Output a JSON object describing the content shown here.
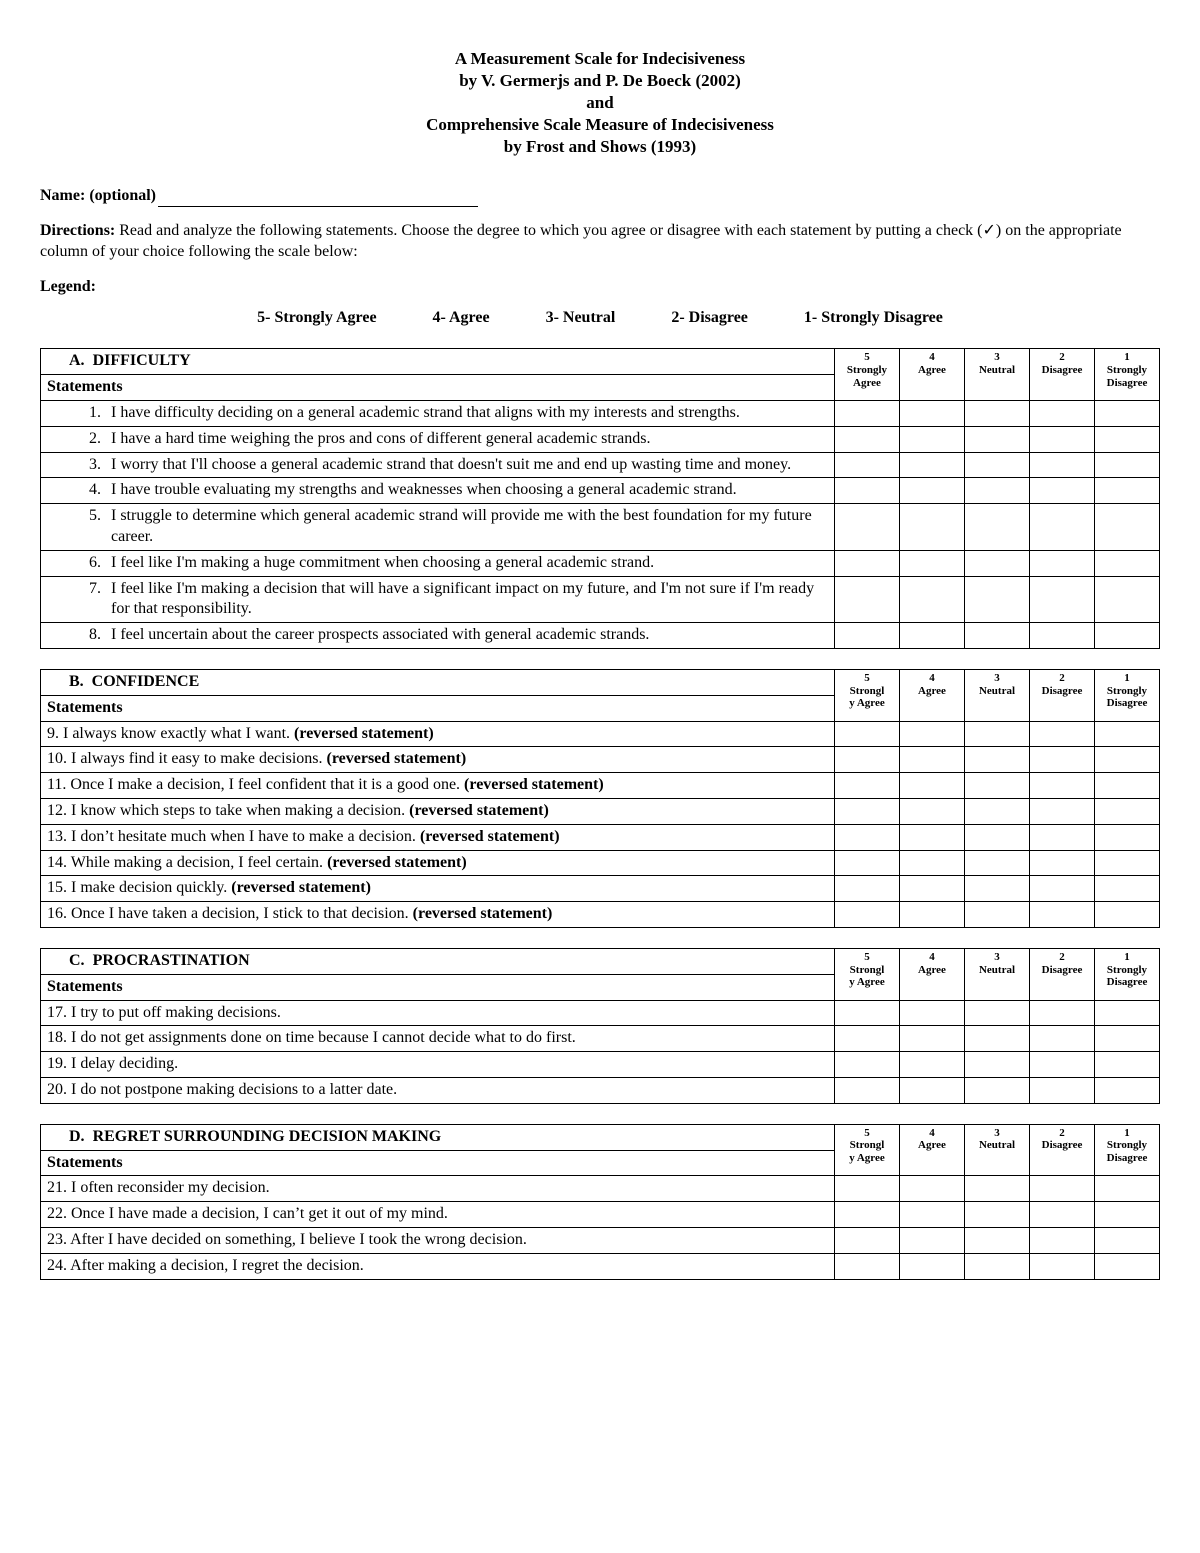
{
  "title": {
    "line1": "A Measurement Scale for Indecisiveness",
    "line2": "by V. Germerjs and P. De Boeck (2002)",
    "line3": "and",
    "line4": "Comprehensive Scale Measure of Indecisiveness",
    "line5": "by Frost and Shows (1993)"
  },
  "name_label": "Name: (optional)",
  "directions_label": "Directions:",
  "directions_text": " Read and analyze the following statements. Choose the degree to which you agree or disagree with each statement by putting a check (✓) on the appropriate column of your choice following the scale below:",
  "legend_label": "Legend:",
  "legend": {
    "i5": "5- Strongly Agree",
    "i4": "4- Agree",
    "i3": "3- Neutral",
    "i2": "2- Disagree",
    "i1": "1- Strongly Disagree"
  },
  "ratings": {
    "c5n": "5",
    "c5l": "Strongly Agree",
    "c4n": "4",
    "c4l": "Agree",
    "c3n": "3",
    "c3l": "Neutral",
    "c2n": "2",
    "c2l": "Disagree",
    "c1n": "1",
    "c1l": "Strongly Disagree",
    "c5l2": "Strongl\ny Agree"
  },
  "statements_label": "Statements",
  "sections": {
    "A": {
      "letter": "A.",
      "title": "DIFFICULTY",
      "items": [
        "I have difficulty deciding on a general academic strand that aligns with my interests and strengths.",
        "I have a hard time weighing the pros and cons of different general academic strands.",
        "I worry that I'll choose a general academic strand that doesn't suit me and end up wasting time and money.",
        "I have trouble evaluating my strengths and weaknesses when choosing a general academic strand.",
        "I struggle to determine which general academic strand will provide me with the best foundation for my future career.",
        "I feel like I'm making a huge commitment when choosing a general academic strand.",
        "I feel like I'm making a decision that will have a significant impact on my future, and I'm not sure if I'm ready for that responsibility.",
        "I feel uncertain about the career prospects associated with general academic strands."
      ]
    },
    "B": {
      "letter": "B.",
      "title": "CONFIDENCE",
      "items": [
        {
          "n": "9.",
          "t": "I always know exactly what I want. ",
          "r": "(reversed statement)"
        },
        {
          "n": "10.",
          "t": "I always find it easy to make decisions. ",
          "r": "(reversed statement)"
        },
        {
          "n": "11.",
          "t": "Once I make a decision, I feel confident that it is a good one. ",
          "r": "(reversed statement)"
        },
        {
          "n": "12.",
          "t": "I know which steps to take when making a decision. ",
          "r": "(reversed statement)"
        },
        {
          "n": "13.",
          "t": "I don’t hesitate much when I have to make a decision. ",
          "r": "(reversed statement)"
        },
        {
          "n": "14.",
          "t": "While making a decision, I feel certain. ",
          "r": "(reversed statement)"
        },
        {
          "n": "15.",
          "t": "I make decision quickly. ",
          "r": "(reversed statement)"
        },
        {
          "n": "16.",
          "t": "Once I have taken a decision, I stick to that decision. ",
          "r": "(reversed statement)"
        }
      ]
    },
    "C": {
      "letter": "C.",
      "title": "PROCRASTINATION",
      "items": [
        {
          "n": "17.",
          "t": "I try to put off making decisions."
        },
        {
          "n": "18.",
          "t": "I do not get assignments done on time because I cannot decide what to do first."
        },
        {
          "n": "19.",
          "t": "I delay deciding."
        },
        {
          "n": "20.",
          "t": "I do not postpone making decisions to a latter date."
        }
      ]
    },
    "D": {
      "letter": "D.",
      "title": "REGRET SURROUNDING DECISION MAKING",
      "items": [
        {
          "n": "21.",
          "t": "I often reconsider my decision."
        },
        {
          "n": "22.",
          "t": "Once I have made a decision, I can’t get it out of my mind."
        },
        {
          "n": "23.",
          "t": "After I have decided on something, I believe I took the wrong decision."
        },
        {
          "n": "24.",
          "t": "After making a decision, I regret the decision."
        }
      ]
    }
  }
}
